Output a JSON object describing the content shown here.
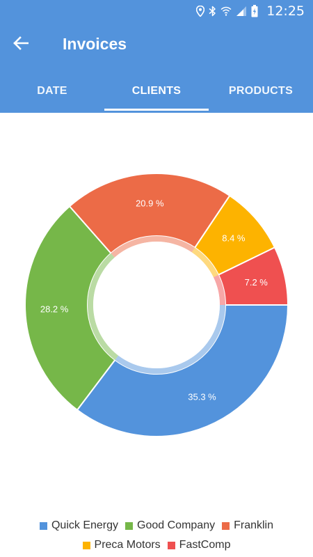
{
  "status_bar": {
    "time": "12:25",
    "icons": [
      "location-icon",
      "bluetooth-icon",
      "wifi-icon",
      "signal-icon",
      "battery-charging-icon"
    ]
  },
  "toolbar": {
    "title": "Invoices",
    "back_icon": "arrow-left-icon"
  },
  "tabs": [
    {
      "label": "DATE",
      "active": false
    },
    {
      "label": "CLIENTS",
      "active": true
    },
    {
      "label": "PRODUCTS",
      "active": false
    }
  ],
  "colors": {
    "appbar": "#5393dc",
    "quick_energy": "#5393dc",
    "good_company": "#76b749",
    "franklin": "#ec6b47",
    "preca_motors": "#fdb300",
    "fastcomp": "#ef5050"
  },
  "chart_data": {
    "type": "pie",
    "variant": "donut",
    "title": "",
    "categories": [
      "Quick Energy",
      "Good Company",
      "Franklin",
      "Preca Motors",
      "FastComp"
    ],
    "values": [
      35.3,
      28.2,
      20.9,
      8.4,
      7.2
    ],
    "labels": [
      "35.3 %",
      "28.2 %",
      "20.9 %",
      "8.4 %",
      "7.2 %"
    ],
    "colors": [
      "#5393dc",
      "#76b749",
      "#ec6b47",
      "#fdb300",
      "#ef5050"
    ],
    "start": "3 o'clock",
    "direction": "clockwise",
    "legend": "bottom"
  },
  "legend": [
    {
      "label": "Quick Energy",
      "color": "#5393dc"
    },
    {
      "label": "Good Company",
      "color": "#76b749"
    },
    {
      "label": "Franklin",
      "color": "#ec6b47"
    },
    {
      "label": "Preca Motors",
      "color": "#fdb300"
    },
    {
      "label": "FastComp",
      "color": "#ef5050"
    }
  ]
}
